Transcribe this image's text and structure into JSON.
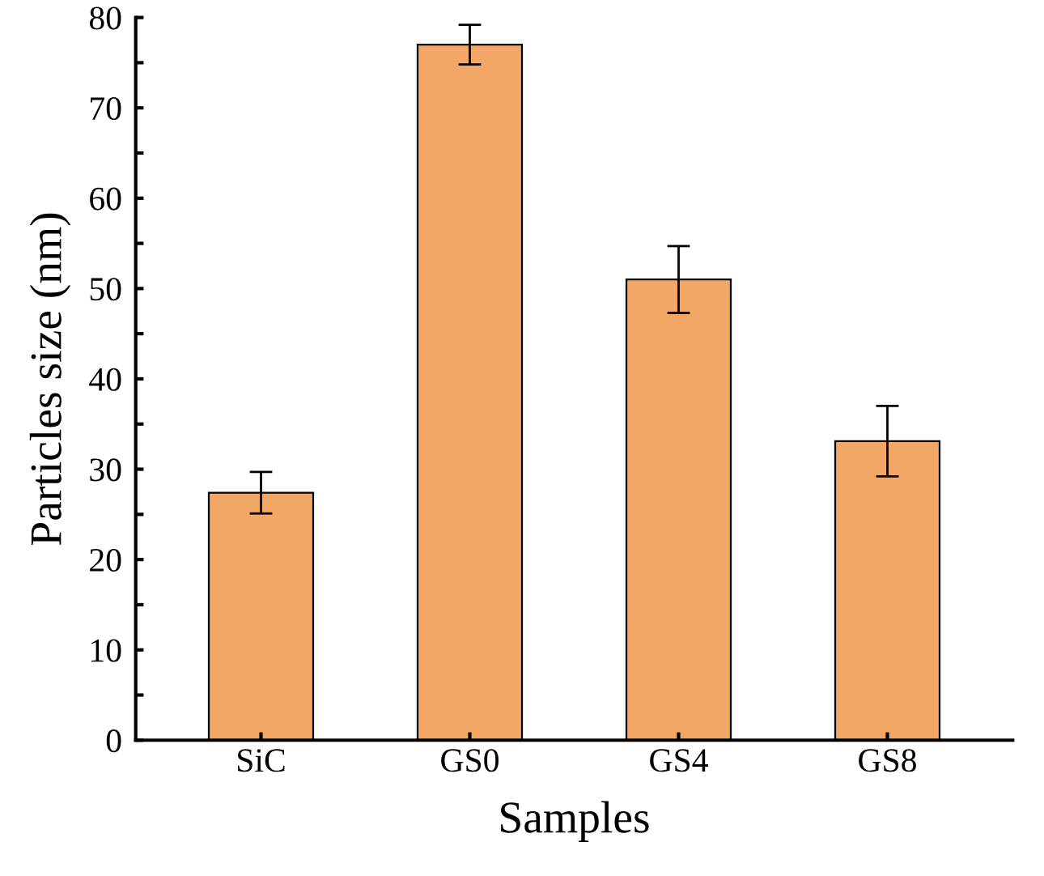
{
  "chart_data": {
    "type": "bar",
    "xlabel": "Samples",
    "ylabel": "Particles size (nm)",
    "categories": [
      "SiC",
      "GS0",
      "GS4",
      "GS8"
    ],
    "values": [
      27.4,
      77.0,
      51.0,
      33.1
    ],
    "errors": [
      2.3,
      2.2,
      3.7,
      3.9
    ],
    "color": "#f2a766",
    "ylim": [
      0,
      80
    ],
    "yticks": [
      0,
      {
        "value": 5,
        "label": null
      },
      10,
      {
        "value": 15,
        "label": null
      },
      20,
      {
        "value": 25,
        "label": null
      },
      30,
      {
        "value": 35,
        "label": null
      },
      40,
      {
        "value": 45,
        "label": null
      },
      50,
      {
        "value": 55,
        "label": null
      },
      60,
      {
        "value": 65,
        "label": null
      },
      70,
      {
        "value": 75,
        "label": null
      },
      80
    ],
    "grid": false,
    "legend": false
  }
}
